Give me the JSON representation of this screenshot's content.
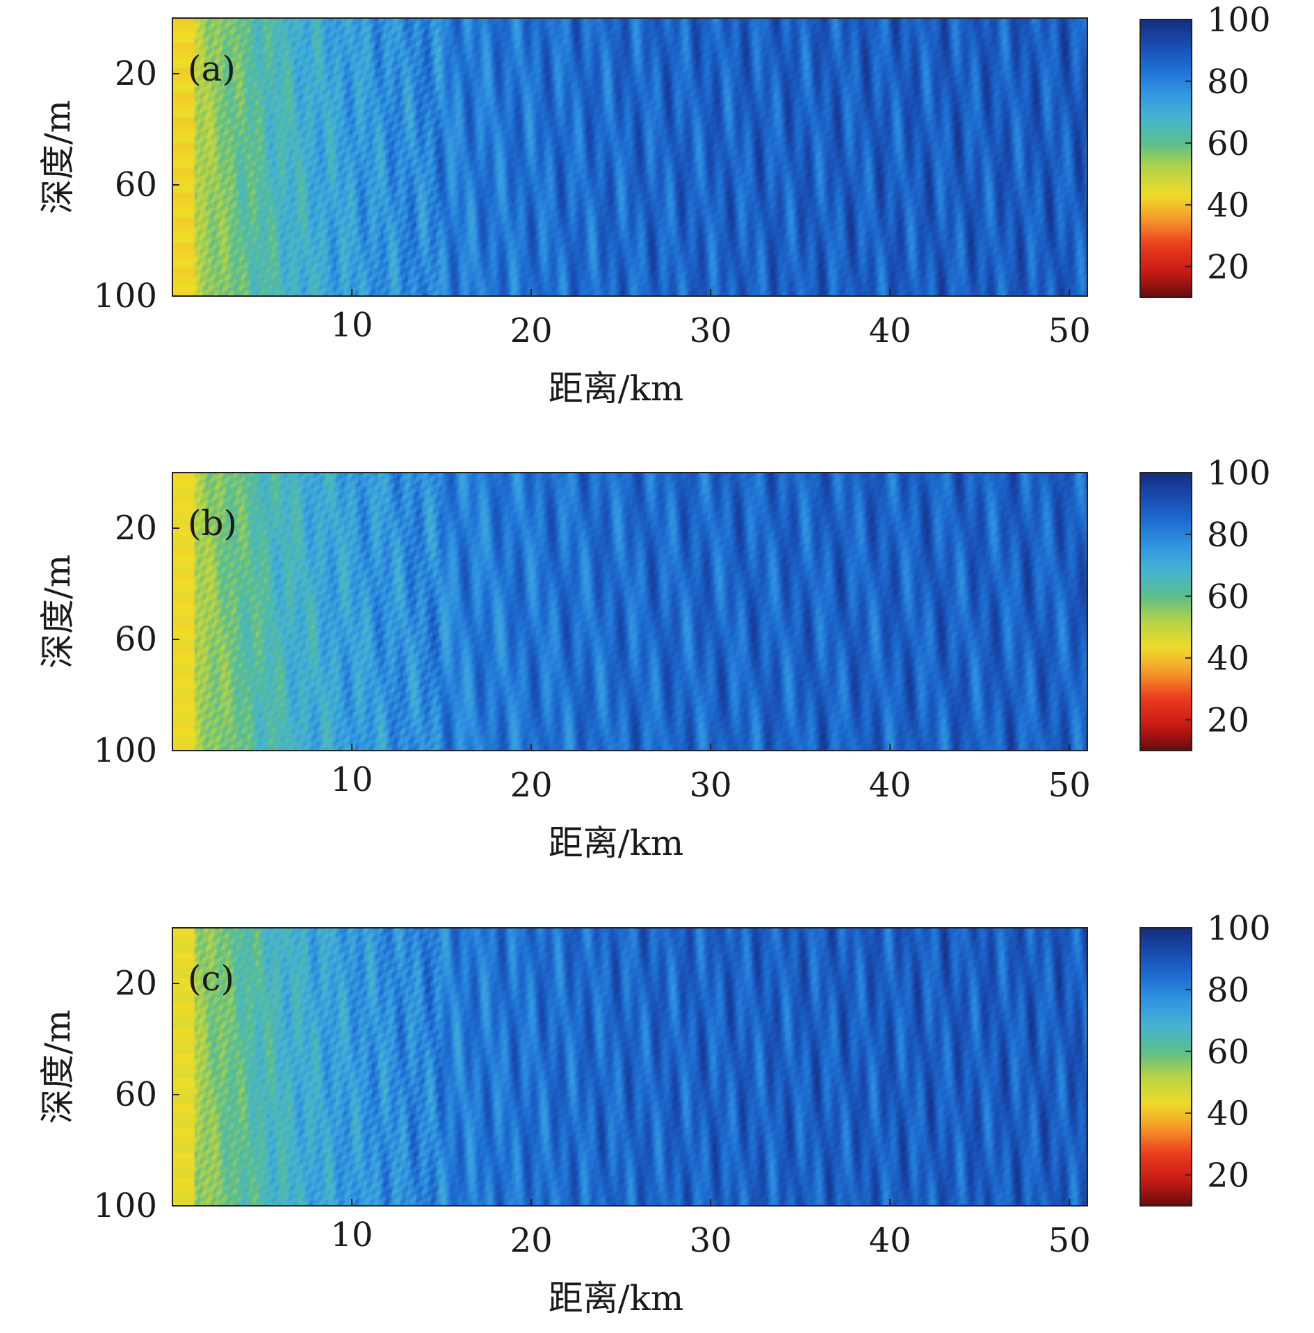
{
  "chart_data": [
    {
      "type": "heatmap",
      "panel_label": "(a)",
      "xlabel": "距离/km",
      "ylabel": "深度/m",
      "xlim": [
        0,
        51
      ],
      "ylim": [
        0,
        100
      ],
      "y_reversed": true,
      "xticks": [
        10,
        20,
        30,
        40,
        50
      ],
      "yticks": [
        20,
        60,
        100
      ],
      "colorbar": {
        "ticks": [
          20,
          40,
          60,
          80,
          100
        ],
        "range": [
          10,
          100
        ],
        "colormap": "parula-like (red–yellow–green–cyan–blue)"
      },
      "description_values": {
        "near_source_level": 45,
        "far_range_level": 88,
        "interference_period_km": 1.7
      }
    },
    {
      "type": "heatmap",
      "panel_label": "(b)",
      "xlabel": "距离/km",
      "ylabel": "深度/m",
      "xlim": [
        0,
        51
      ],
      "ylim": [
        0,
        100
      ],
      "y_reversed": true,
      "xticks": [
        10,
        20,
        30,
        40,
        50
      ],
      "yticks": [
        20,
        60,
        100
      ],
      "colorbar": {
        "ticks": [
          20,
          40,
          60,
          80,
          100
        ],
        "range": [
          10,
          100
        ],
        "colormap": "parula-like (red–yellow–green–cyan–blue)"
      },
      "description_values": {
        "near_source_level": 46,
        "far_range_level": 87,
        "interference_period_km": 1.9
      }
    },
    {
      "type": "heatmap",
      "panel_label": "(c)",
      "xlabel": "距离/km",
      "ylabel": "深度/m",
      "xlim": [
        0,
        51
      ],
      "ylim": [
        0,
        100
      ],
      "y_reversed": true,
      "xticks": [
        10,
        20,
        30,
        40,
        50
      ],
      "yticks": [
        20,
        60,
        100
      ],
      "colorbar": {
        "ticks": [
          20,
          40,
          60,
          80,
          100
        ],
        "range": [
          10,
          100
        ],
        "colormap": "parula-like (red–yellow–green–cyan–blue)"
      },
      "description_values": {
        "near_source_level": 47,
        "far_range_level": 88,
        "interference_period_km": 1.6
      }
    }
  ]
}
